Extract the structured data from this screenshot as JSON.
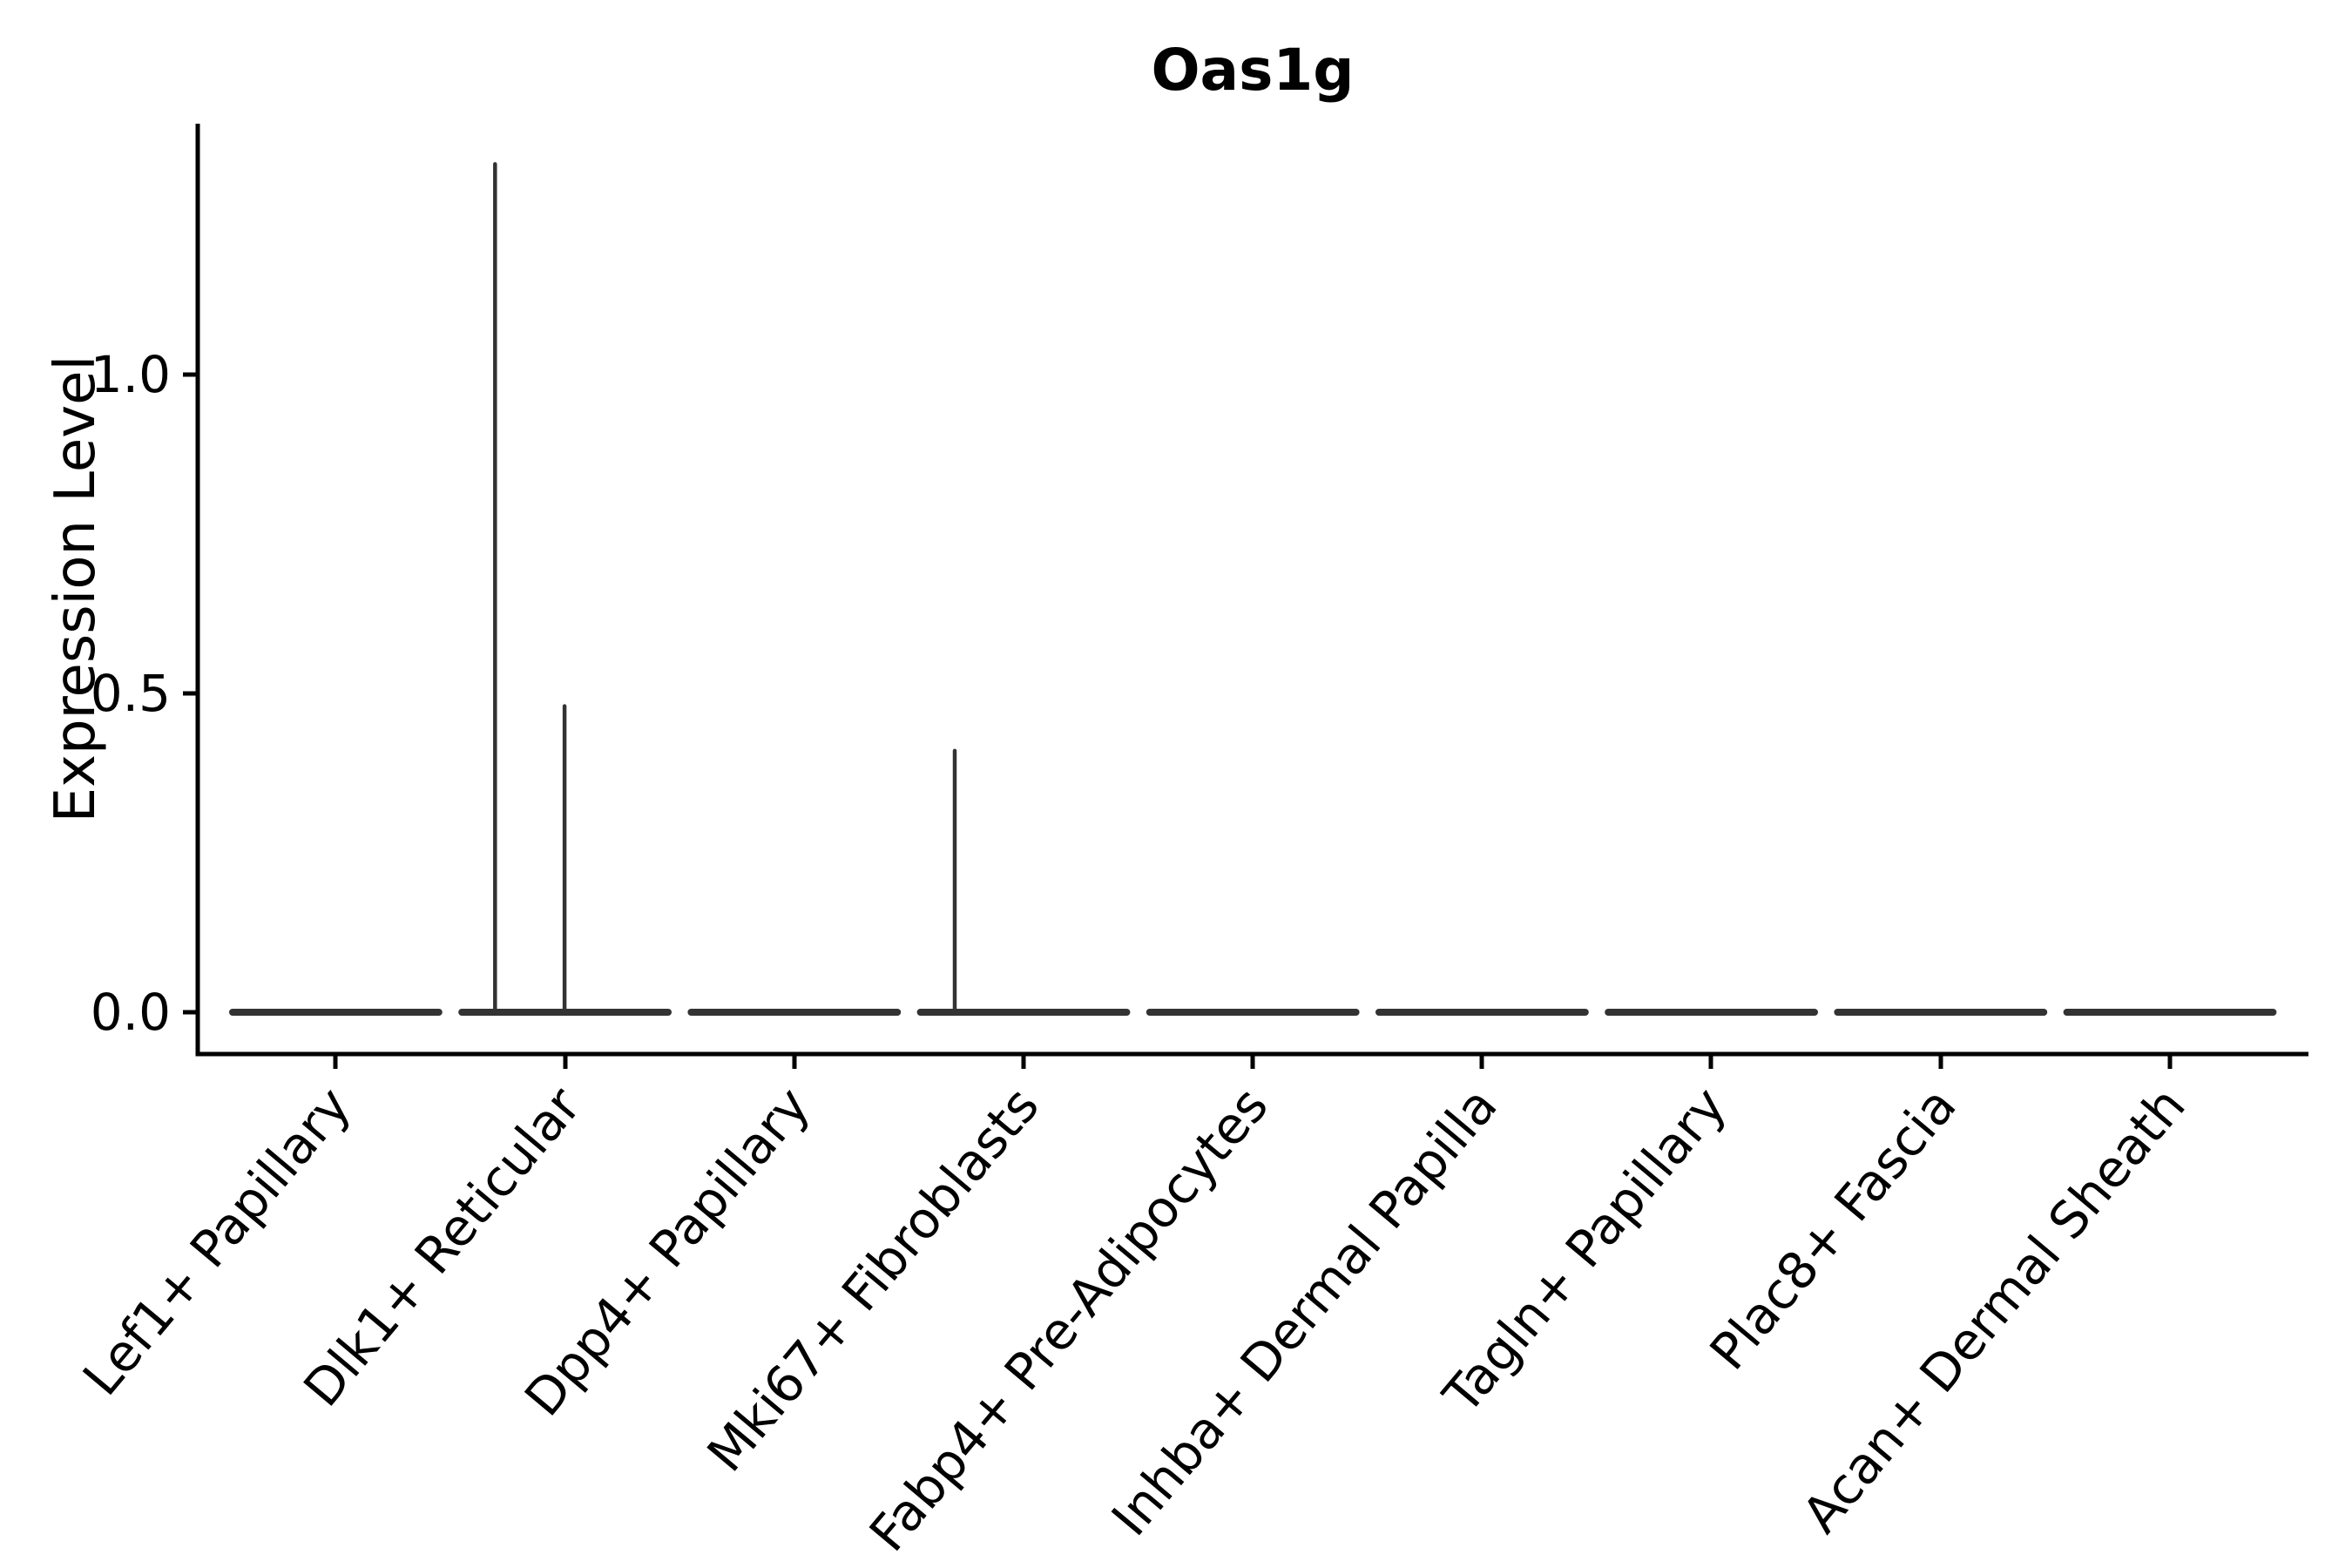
{
  "figure": {
    "title": "Oas1g",
    "background_color": "#ffffff"
  },
  "chart_data": {
    "type": "violin",
    "title": "Oas1g",
    "xlabel": "",
    "ylabel": "Expression Level",
    "categories": [
      "Lef1+ Papillary",
      "Dlk1+ Reticular",
      "Dpp4+ Papillary",
      "Mki67+ Fibroblasts",
      "Fabp4+ Pre-Adipocytes",
      "Inhba+ Dermal Papilla",
      "Tagln+ Papillary",
      "Plac8+ Fascia",
      "Acan+ Dermal Sheath"
    ],
    "yticks": [
      {
        "value": 0.0,
        "label": "0.0"
      },
      {
        "value": 0.5,
        "label": "0.5"
      },
      {
        "value": 1.0,
        "label": "1.0"
      }
    ],
    "ylim": [
      -0.065,
      1.39
    ],
    "grid": false,
    "legend": null,
    "violins": [
      {
        "category": "Lef1+ Papillary",
        "base_value": 0.0,
        "spikes": []
      },
      {
        "category": "Dlk1+ Reticular",
        "base_value": 0.0,
        "spikes": [
          {
            "peak_value": 1.33,
            "x_offset_frac": -0.305
          },
          {
            "peak_value": 0.48,
            "x_offset_frac": -0.002
          }
        ]
      },
      {
        "category": "Dpp4+ Papillary",
        "base_value": 0.0,
        "spikes": []
      },
      {
        "category": "Mki67+ Fibroblasts",
        "base_value": 0.0,
        "spikes": [
          {
            "peak_value": 0.41,
            "x_offset_frac": -0.3
          }
        ]
      },
      {
        "category": "Fabp4+ Pre-Adipocytes",
        "base_value": 0.0,
        "spikes": []
      },
      {
        "category": "Inhba+ Dermal Papilla",
        "base_value": 0.0,
        "spikes": []
      },
      {
        "category": "Tagln+ Papillary",
        "base_value": 0.0,
        "spikes": []
      },
      {
        "category": "Plac8+ Fascia",
        "base_value": 0.0,
        "spikes": []
      },
      {
        "category": "Acan+ Dermal Sheath",
        "base_value": 0.0,
        "spikes": []
      }
    ],
    "style": {
      "violin_line_color": "#333333",
      "spine_color": "#000000",
      "text_color": "#000000"
    }
  }
}
